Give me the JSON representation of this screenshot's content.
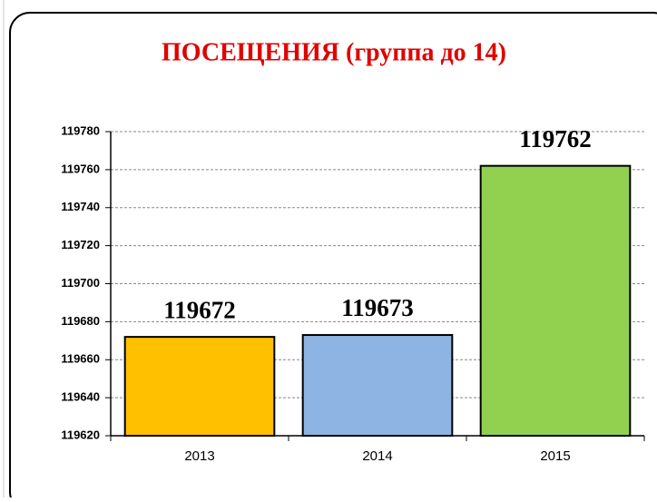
{
  "chart_data": {
    "type": "bar",
    "title": "ПОСЕЩЕНИЯ (группа до 14)",
    "categories": [
      "2013",
      "2014",
      "2015"
    ],
    "values": [
      119672,
      119673,
      119762
    ],
    "colors": [
      "#ffc000",
      "#8db4e2",
      "#92d050"
    ],
    "ylim": [
      119620,
      119780
    ],
    "yticks": [
      119620,
      119640,
      119660,
      119680,
      119700,
      119720,
      119740,
      119760,
      119780
    ],
    "grid": true
  }
}
